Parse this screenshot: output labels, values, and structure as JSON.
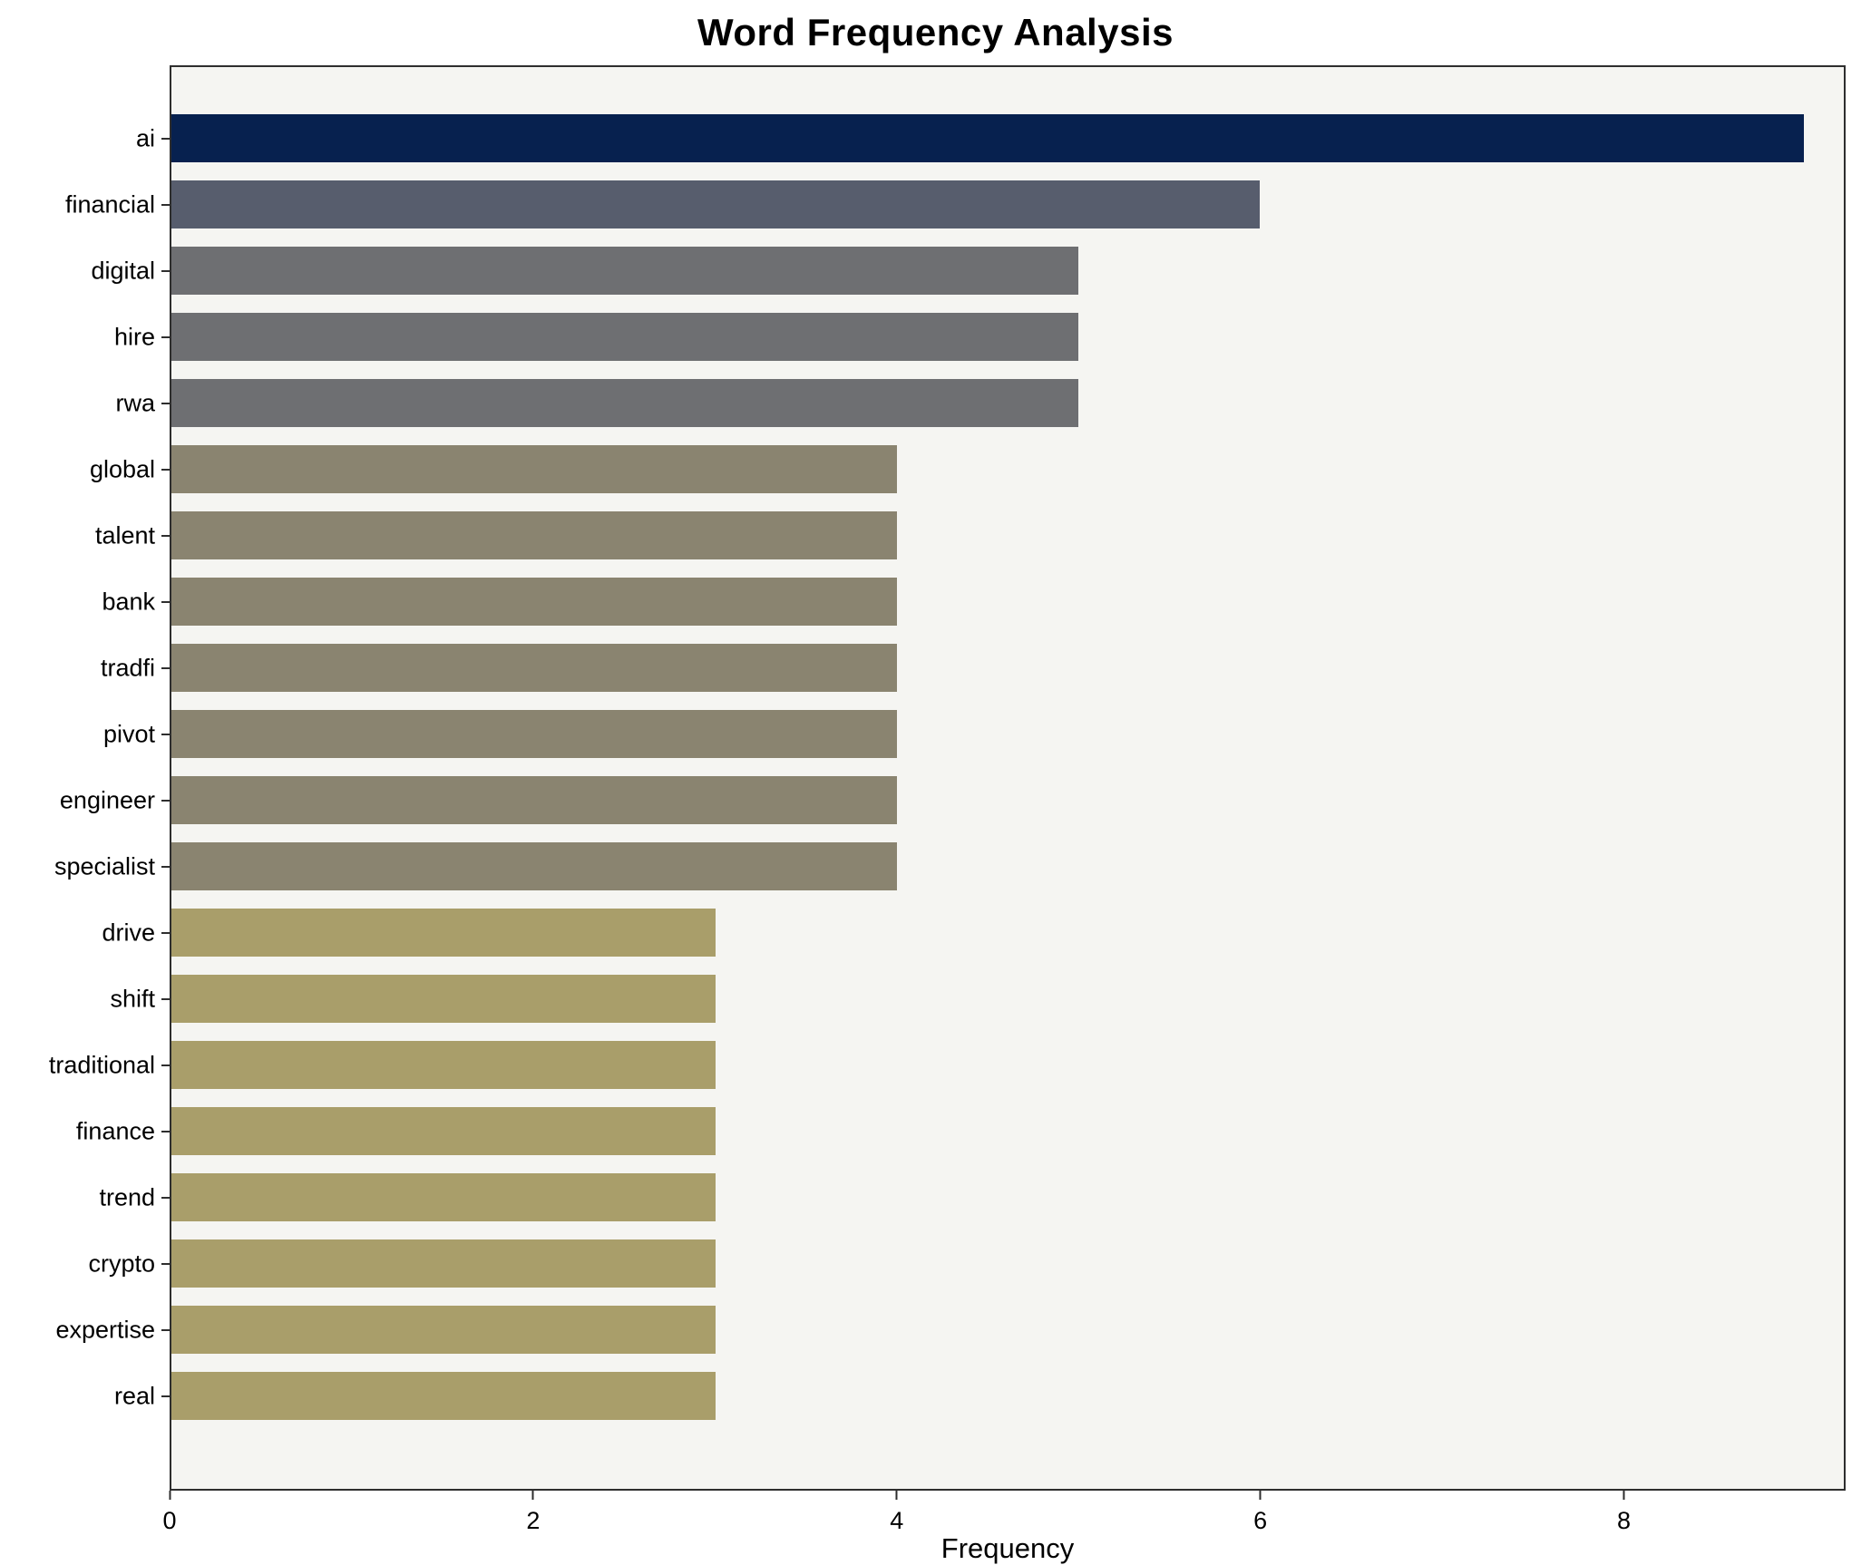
{
  "figure": {
    "title": "Word Frequency Analysis"
  },
  "chart_data": {
    "type": "bar",
    "orientation": "horizontal",
    "title": "Word Frequency Analysis",
    "xlabel": "Frequency",
    "ylabel": "",
    "categories": [
      "ai",
      "financial",
      "digital",
      "hire",
      "rwa",
      "global",
      "talent",
      "bank",
      "tradfi",
      "pivot",
      "engineer",
      "specialist",
      "drive",
      "shift",
      "traditional",
      "finance",
      "trend",
      "crypto",
      "expertise",
      "real"
    ],
    "values": [
      9,
      6,
      5,
      5,
      5,
      4,
      4,
      4,
      4,
      4,
      4,
      4,
      3,
      3,
      3,
      3,
      3,
      3,
      3,
      3
    ],
    "bar_colors": [
      "#07214f",
      "#575d6d",
      "#6e6f72",
      "#6e6f72",
      "#6e6f72",
      "#8a8470",
      "#8a8470",
      "#8a8470",
      "#8a8470",
      "#8a8470",
      "#8a8470",
      "#8a8470",
      "#a99e6a",
      "#a99e6a",
      "#a99e6a",
      "#a99e6a",
      "#a99e6a",
      "#a99e6a",
      "#a99e6a",
      "#a99e6a"
    ],
    "xlim": [
      0,
      9.22
    ],
    "xticks": [
      0,
      2,
      4,
      6,
      8
    ],
    "grid": false,
    "legend_position": "none",
    "plot_background": "#f5f5f2",
    "figure_background": "#ffffff"
  }
}
